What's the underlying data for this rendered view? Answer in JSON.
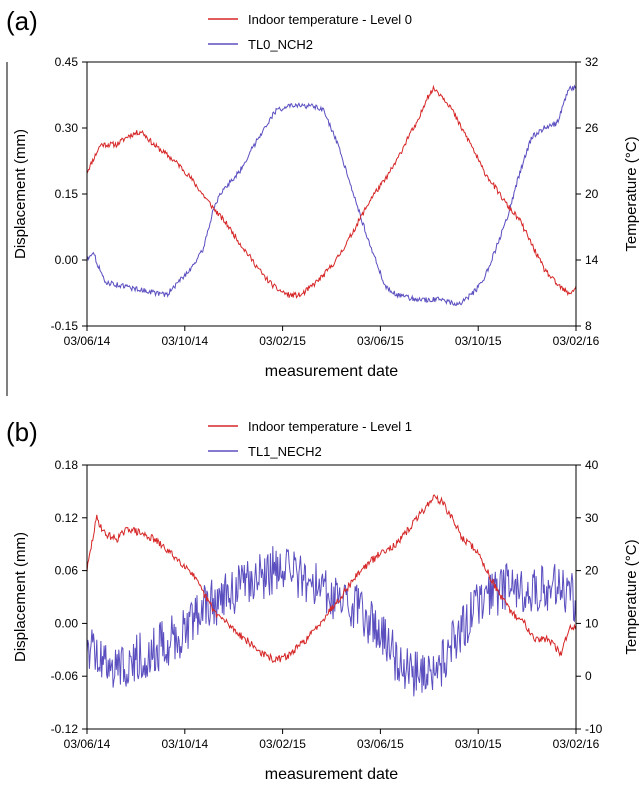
{
  "chart_data": [
    {
      "panel_label": "(a)",
      "type": "line",
      "xlabel": "measurement date",
      "ylabel_left": "Displacement (mm)",
      "ylabel_right": "Temperature (°C)",
      "xlim": [
        "2014-06-03",
        "2016-02-03"
      ],
      "x_ticks": [
        "03/06/14",
        "03/10/14",
        "03/02/15",
        "03/06/15",
        "03/10/15",
        "03/02/16"
      ],
      "ylim_left": [
        -0.15,
        0.45
      ],
      "y_ticks_left": [
        "-0.15",
        "0.00",
        "0.15",
        "0.30",
        "0.45"
      ],
      "ylim_right": [
        8,
        32
      ],
      "y_ticks_right": [
        "8",
        "14",
        "20",
        "26",
        "32"
      ],
      "grid": false,
      "legend_position": "top-center",
      "series": [
        {
          "name": "Indoor temperature - Level 0",
          "axis": "right",
          "color": "#d62728",
          "points": [
            [
              "2014-06-03",
              22.0
            ],
            [
              "2014-06-20",
              24.5
            ],
            [
              "2014-07-10",
              24.5
            ],
            [
              "2014-07-25",
              25.3
            ],
            [
              "2014-08-10",
              25.7
            ],
            [
              "2014-08-25",
              24.5
            ],
            [
              "2014-09-10",
              23.6
            ],
            [
              "2014-09-25",
              22.7
            ],
            [
              "2014-10-10",
              21.5
            ],
            [
              "2014-10-25",
              20.0
            ],
            [
              "2014-11-10",
              18.5
            ],
            [
              "2014-11-25",
              17.2
            ],
            [
              "2014-12-10",
              15.6
            ],
            [
              "2014-12-25",
              14.1
            ],
            [
              "2015-01-10",
              12.5
            ],
            [
              "2015-01-25",
              11.4
            ],
            [
              "2015-02-10",
              10.8
            ],
            [
              "2015-02-25",
              10.8
            ],
            [
              "2015-03-10",
              11.6
            ],
            [
              "2015-03-25",
              12.6
            ],
            [
              "2015-04-10",
              14.0
            ],
            [
              "2015-04-25",
              15.8
            ],
            [
              "2015-05-10",
              17.8
            ],
            [
              "2015-05-25",
              19.8
            ],
            [
              "2015-06-10",
              21.3
            ],
            [
              "2015-06-25",
              23.1
            ],
            [
              "2015-07-10",
              25.4
            ],
            [
              "2015-07-20",
              26.4
            ],
            [
              "2015-08-01",
              28.8
            ],
            [
              "2015-08-10",
              29.6
            ],
            [
              "2015-08-20",
              28.9
            ],
            [
              "2015-08-30",
              28.0
            ],
            [
              "2015-09-10",
              26.4
            ],
            [
              "2015-09-25",
              24.5
            ],
            [
              "2015-10-10",
              22.2
            ],
            [
              "2015-10-25",
              20.6
            ],
            [
              "2015-11-10",
              18.9
            ],
            [
              "2015-11-25",
              17.6
            ],
            [
              "2015-12-10",
              15.4
            ],
            [
              "2015-12-25",
              13.2
            ],
            [
              "2016-01-10",
              11.8
            ],
            [
              "2016-01-25",
              10.9
            ],
            [
              "2016-02-03",
              11.5
            ]
          ]
        },
        {
          "name": "TL0_NCH2",
          "axis": "left",
          "color": "#5b4fc0",
          "points": [
            [
              "2014-06-03",
              0.0
            ],
            [
              "2014-06-10",
              0.02
            ],
            [
              "2014-06-25",
              -0.05
            ],
            [
              "2014-07-20",
              -0.06
            ],
            [
              "2014-08-15",
              -0.07
            ],
            [
              "2014-09-10",
              -0.08
            ],
            [
              "2014-09-25",
              -0.05
            ],
            [
              "2014-10-10",
              -0.02
            ],
            [
              "2014-10-25",
              0.02
            ],
            [
              "2014-11-10",
              0.13
            ],
            [
              "2014-11-25",
              0.17
            ],
            [
              "2014-12-10",
              0.2
            ],
            [
              "2014-12-25",
              0.25
            ],
            [
              "2015-01-10",
              0.3
            ],
            [
              "2015-01-25",
              0.34
            ],
            [
              "2015-02-10",
              0.35
            ],
            [
              "2015-02-25",
              0.35
            ],
            [
              "2015-03-10",
              0.35
            ],
            [
              "2015-03-25",
              0.34
            ],
            [
              "2015-04-10",
              0.27
            ],
            [
              "2015-04-25",
              0.19
            ],
            [
              "2015-05-10",
              0.1
            ],
            [
              "2015-05-25",
              0.02
            ],
            [
              "2015-06-10",
              -0.06
            ],
            [
              "2015-06-25",
              -0.08
            ],
            [
              "2015-07-20",
              -0.09
            ],
            [
              "2015-08-15",
              -0.09
            ],
            [
              "2015-09-10",
              -0.1
            ],
            [
              "2015-09-25",
              -0.08
            ],
            [
              "2015-10-10",
              -0.05
            ],
            [
              "2015-10-25",
              0.02
            ],
            [
              "2015-11-10",
              0.1
            ],
            [
              "2015-11-25",
              0.2
            ],
            [
              "2015-12-10",
              0.28
            ],
            [
              "2015-12-25",
              0.3
            ],
            [
              "2016-01-10",
              0.31
            ],
            [
              "2016-01-25",
              0.39
            ],
            [
              "2016-02-03",
              0.39
            ]
          ]
        }
      ]
    },
    {
      "panel_label": "(b)",
      "type": "line",
      "xlabel": "measurement date",
      "ylabel_left": "Displacement (mm)",
      "ylabel_right": "Temperature (°C)",
      "xlim": [
        "2014-06-03",
        "2016-02-03"
      ],
      "x_ticks": [
        "03/06/14",
        "03/10/14",
        "03/02/15",
        "03/06/15",
        "03/10/15",
        "03/02/16"
      ],
      "ylim_left": [
        -0.12,
        0.18
      ],
      "y_ticks_left": [
        "-0.12",
        "-0.06",
        "0.00",
        "0.06",
        "0.12",
        "0.18"
      ],
      "ylim_right": [
        -10,
        40
      ],
      "y_ticks_right": [
        "-10",
        "0",
        "10",
        "20",
        "30",
        "40"
      ],
      "grid": false,
      "legend_position": "top-center",
      "series": [
        {
          "name": "Indoor temperature - Level 1",
          "axis": "right",
          "color": "#d62728",
          "points": [
            [
              "2014-06-03",
              20.0
            ],
            [
              "2014-06-10",
              26.0
            ],
            [
              "2014-06-15",
              30.0
            ],
            [
              "2014-06-25",
              27.0
            ],
            [
              "2014-07-10",
              26.0
            ],
            [
              "2014-07-25",
              28.0
            ],
            [
              "2014-08-10",
              27.0
            ],
            [
              "2014-08-25",
              26.0
            ],
            [
              "2014-09-10",
              24.0
            ],
            [
              "2014-09-25",
              22.0
            ],
            [
              "2014-10-10",
              20.0
            ],
            [
              "2014-10-25",
              16.0
            ],
            [
              "2014-11-10",
              12.0
            ],
            [
              "2014-11-25",
              10.0
            ],
            [
              "2014-12-10",
              8.0
            ],
            [
              "2014-12-25",
              6.0
            ],
            [
              "2015-01-10",
              4.0
            ],
            [
              "2015-01-25",
              3.0
            ],
            [
              "2015-02-10",
              4.0
            ],
            [
              "2015-02-25",
              6.0
            ],
            [
              "2015-03-10",
              8.0
            ],
            [
              "2015-03-25",
              11.0
            ],
            [
              "2015-04-10",
              14.0
            ],
            [
              "2015-04-25",
              17.0
            ],
            [
              "2015-05-10",
              20.0
            ],
            [
              "2015-05-25",
              22.0
            ],
            [
              "2015-06-10",
              24.0
            ],
            [
              "2015-06-25",
              25.0
            ],
            [
              "2015-07-10",
              28.0
            ],
            [
              "2015-07-25",
              31.0
            ],
            [
              "2015-08-10",
              34.0
            ],
            [
              "2015-08-20",
              33.0
            ],
            [
              "2015-09-01",
              30.0
            ],
            [
              "2015-09-15",
              26.0
            ],
            [
              "2015-10-01",
              24.0
            ],
            [
              "2015-10-15",
              20.0
            ],
            [
              "2015-11-01",
              15.0
            ],
            [
              "2015-11-15",
              12.0
            ],
            [
              "2015-12-01",
              10.0
            ],
            [
              "2015-12-15",
              7.0
            ],
            [
              "2016-01-01",
              7.0
            ],
            [
              "2016-01-15",
              4.0
            ],
            [
              "2016-01-25",
              9.0
            ],
            [
              "2016-02-03",
              9.5
            ]
          ]
        },
        {
          "name": "TL1_NECH2",
          "axis": "left",
          "color": "#5b4fc0",
          "points": [
            [
              "2014-06-03",
              -0.02
            ],
            [
              "2014-06-20",
              -0.04
            ],
            [
              "2014-07-10",
              -0.05
            ],
            [
              "2014-08-01",
              -0.04
            ],
            [
              "2014-08-25",
              -0.03
            ],
            [
              "2014-09-15",
              -0.02
            ],
            [
              "2014-10-01",
              -0.01
            ],
            [
              "2014-10-15",
              0.01
            ],
            [
              "2014-11-01",
              0.02
            ],
            [
              "2014-11-20",
              0.03
            ],
            [
              "2014-12-10",
              0.04
            ],
            [
              "2015-01-01",
              0.05
            ],
            [
              "2015-01-20",
              0.06
            ],
            [
              "2015-02-10",
              0.06
            ],
            [
              "2015-03-01",
              0.05
            ],
            [
              "2015-03-20",
              0.04
            ],
            [
              "2015-04-10",
              0.03
            ],
            [
              "2015-05-01",
              0.02
            ],
            [
              "2015-05-25",
              0.0
            ],
            [
              "2015-06-15",
              -0.03
            ],
            [
              "2015-07-05",
              -0.05
            ],
            [
              "2015-07-25",
              -0.06
            ],
            [
              "2015-08-15",
              -0.05
            ],
            [
              "2015-09-05",
              -0.02
            ],
            [
              "2015-09-25",
              0.01
            ],
            [
              "2015-10-15",
              0.03
            ],
            [
              "2015-11-05",
              0.04
            ],
            [
              "2015-11-25",
              0.04
            ],
            [
              "2015-12-15",
              0.04
            ],
            [
              "2016-01-05",
              0.04
            ],
            [
              "2016-01-25",
              0.04
            ],
            [
              "2016-02-03",
              0.02
            ]
          ]
        }
      ]
    }
  ]
}
